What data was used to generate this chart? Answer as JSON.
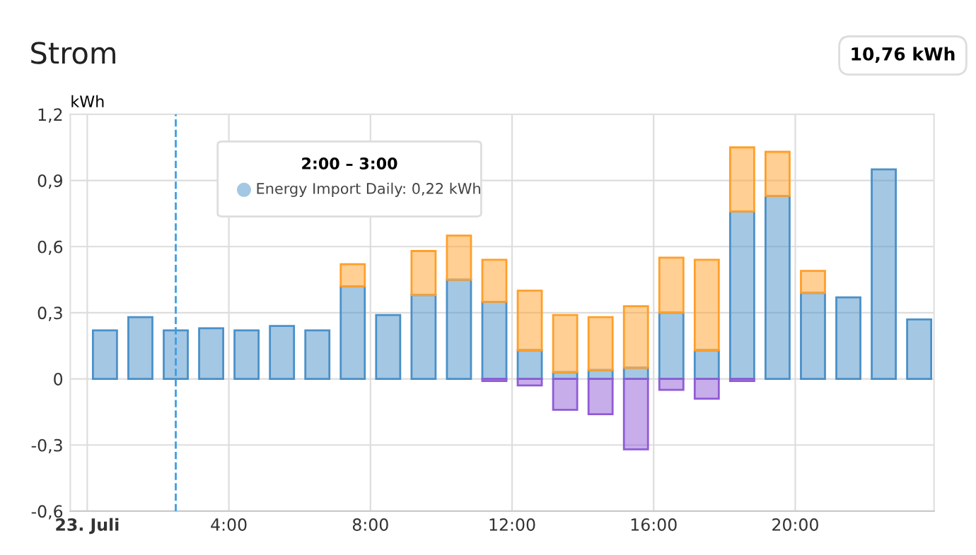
{
  "chart_data": {
    "type": "bar",
    "title": "Strom",
    "ylabel": "kWh",
    "stacked": true,
    "x": [
      0.5,
      1.5,
      2.5,
      3.5,
      4.5,
      5.5,
      6.5,
      7.5,
      8.5,
      9.5,
      10.5,
      11.5,
      12.5,
      13.5,
      14.5,
      15.5,
      16.5,
      17.5,
      18.5,
      19.5,
      20.5,
      21.5,
      22.5,
      23.5
    ],
    "series": [
      {
        "color": "#4a90c8",
        "values": [
          0.22,
          0.28,
          0.22,
          0.23,
          0.22,
          0.24,
          0.22,
          0.42,
          0.29,
          0.38,
          0.45,
          0.35,
          0.13,
          0.03,
          0.04,
          0.05,
          0.3,
          0.13,
          0.76,
          0.83,
          0.39,
          0.37,
          0.95,
          0.27
        ]
      },
      {
        "color": "#ff9f2a",
        "values": [
          null,
          null,
          null,
          null,
          null,
          null,
          null,
          0.1,
          null,
          0.2,
          0.2,
          0.19,
          0.27,
          0.26,
          0.24,
          0.28,
          0.25,
          0.41,
          0.29,
          0.2,
          0.1,
          null,
          null,
          null
        ]
      },
      {
        "color": "#8f5bd6",
        "values": [
          null,
          null,
          null,
          null,
          null,
          null,
          null,
          null,
          null,
          null,
          null,
          -0.01,
          -0.03,
          -0.14,
          -0.16,
          -0.32,
          -0.05,
          -0.09,
          -0.01,
          null,
          null,
          null,
          null,
          null
        ]
      }
    ],
    "xlim": [
      -0.48,
      23.92
    ],
    "xticks": [
      {
        "value": 0,
        "label": "23. Juli"
      },
      {
        "value": 4,
        "label": "4:00"
      },
      {
        "value": 8,
        "label": "8:00"
      },
      {
        "value": 12,
        "label": "12:00"
      },
      {
        "value": 16,
        "label": "16:00"
      },
      {
        "value": 20,
        "label": "20:00"
      }
    ],
    "ylim": [
      -0.6,
      1.2
    ],
    "yticks": [
      {
        "value": -0.6,
        "label": "-0,6"
      },
      {
        "value": -0.3,
        "label": "-0,3"
      },
      0,
      {
        "value": 0.3,
        "label": "0,3"
      },
      {
        "value": 0.6,
        "label": "0,6"
      },
      {
        "value": 0.9,
        "label": "0,9"
      },
      {
        "value": 1.2,
        "label": "1,2"
      }
    ],
    "grid": true,
    "ref_lines": [
      {
        "axis": "x",
        "value": 2.5,
        "color": "#3a9ee4",
        "line_style": "dashed"
      }
    ],
    "annotations": [
      "10,76 kWh",
      "2:00 – 3:00",
      "Energy Import Daily: 0,22 kWh"
    ]
  }
}
